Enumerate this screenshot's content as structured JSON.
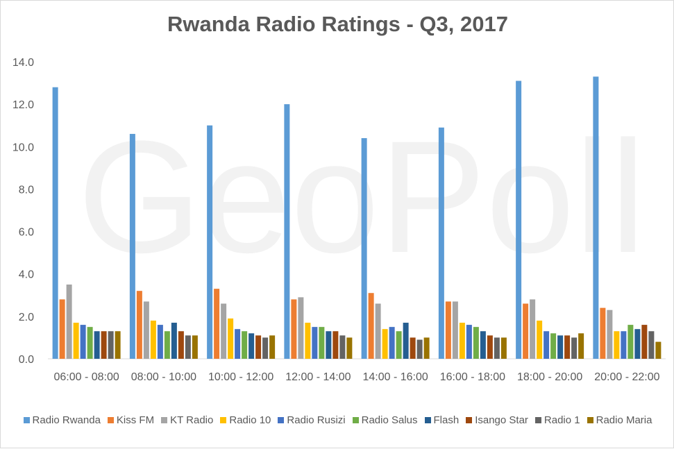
{
  "chart_data": {
    "type": "bar",
    "title": "Rwanda Radio Ratings - Q3, 2017",
    "watermark": "GeoPoll",
    "ylim": [
      0,
      14
    ],
    "yticks": [
      "0.0",
      "2.0",
      "4.0",
      "6.0",
      "8.0",
      "10.0",
      "12.0",
      "14.0"
    ],
    "grid": false,
    "legend_position": "bottom",
    "categories": [
      "06:00 - 08:00",
      "08:00 - 10:00",
      "10:00 - 12:00",
      "12:00 - 14:00",
      "14:00 - 16:00",
      "16:00 - 18:00",
      "18:00 - 20:00",
      "20:00 - 22:00"
    ],
    "series": [
      {
        "name": "Radio Rwanda",
        "color": "#5B9BD5",
        "values": [
          12.8,
          10.6,
          11.0,
          12.0,
          10.4,
          10.9,
          13.1,
          13.3
        ]
      },
      {
        "name": "Kiss FM",
        "color": "#ED7D31",
        "values": [
          2.8,
          3.2,
          3.3,
          2.8,
          3.1,
          2.7,
          2.6,
          2.4
        ]
      },
      {
        "name": "KT Radio",
        "color": "#A5A5A5",
        "values": [
          3.5,
          2.7,
          2.6,
          2.9,
          2.6,
          2.7,
          2.8,
          2.3
        ]
      },
      {
        "name": "Radio 10",
        "color": "#FFC000",
        "values": [
          1.7,
          1.8,
          1.9,
          1.7,
          1.4,
          1.7,
          1.8,
          1.3
        ]
      },
      {
        "name": "Radio Rusizi",
        "color": "#4472C4",
        "values": [
          1.6,
          1.6,
          1.4,
          1.5,
          1.5,
          1.6,
          1.3,
          1.3
        ]
      },
      {
        "name": "Radio Salus",
        "color": "#70AD47",
        "values": [
          1.5,
          1.3,
          1.3,
          1.5,
          1.3,
          1.5,
          1.2,
          1.6
        ]
      },
      {
        "name": "Flash",
        "color": "#255E91",
        "values": [
          1.3,
          1.7,
          1.2,
          1.3,
          1.7,
          1.3,
          1.1,
          1.4
        ]
      },
      {
        "name": "Isango Star",
        "color": "#9E480E",
        "values": [
          1.3,
          1.3,
          1.1,
          1.3,
          1.0,
          1.1,
          1.1,
          1.6
        ]
      },
      {
        "name": "Radio 1",
        "color": "#636363",
        "values": [
          1.3,
          1.1,
          1.0,
          1.1,
          0.9,
          1.0,
          1.0,
          1.3
        ]
      },
      {
        "name": "Radio Maria",
        "color": "#997300",
        "values": [
          1.3,
          1.1,
          1.1,
          1.0,
          1.0,
          1.0,
          1.2,
          0.8
        ]
      }
    ]
  }
}
